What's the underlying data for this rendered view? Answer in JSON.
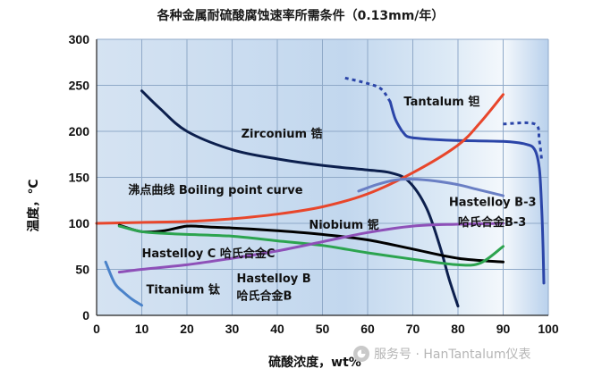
{
  "chart_data": {
    "type": "line",
    "title": "各种金属耐硫酸腐蚀速率所需条件（0.13mm/年）",
    "xlabel": "硫酸浓度，wt%",
    "ylabel": "温度，℃",
    "xlim": [
      0,
      100
    ],
    "ylim": [
      0,
      300
    ],
    "xticks": [
      "0",
      "10",
      "20",
      "30",
      "40",
      "50",
      "60",
      "70",
      "80",
      "90",
      "100"
    ],
    "yticks": [
      "0",
      "50",
      "100",
      "150",
      "200",
      "250",
      "300"
    ],
    "grid": true,
    "background": "vertical gradient, light blue fading to white near 85–100% region",
    "series": [
      {
        "label_lines": [
          "Zirconium 锆"
        ],
        "color": "#0c1f4d",
        "style": "solid",
        "points": [
          [
            10,
            244
          ],
          [
            14,
            225
          ],
          [
            20,
            200
          ],
          [
            30,
            180
          ],
          [
            40,
            170
          ],
          [
            50,
            163
          ],
          [
            60,
            158
          ],
          [
            65,
            155
          ],
          [
            69,
            146
          ],
          [
            73,
            117
          ],
          [
            76,
            75
          ],
          [
            78,
            40
          ],
          [
            80,
            10
          ]
        ]
      },
      {
        "label_lines": [
          "Tantalum 钽"
        ],
        "color": "#2b45a8",
        "style": "solid",
        "points": [
          [
            65,
            232
          ],
          [
            66,
            215
          ],
          [
            67,
            205
          ],
          [
            68,
            198
          ],
          [
            69,
            194
          ],
          [
            72,
            192
          ],
          [
            80,
            190
          ],
          [
            90,
            189
          ],
          [
            95,
            186
          ],
          [
            97,
            180
          ],
          [
            98,
            160
          ],
          [
            98.5,
            120
          ],
          [
            98.8,
            80
          ],
          [
            99,
            35
          ]
        ]
      },
      {
        "label_lines": [],
        "color": "#2b45a8",
        "style": "dotted",
        "points": [
          [
            55,
            258
          ],
          [
            60,
            252
          ],
          [
            63,
            246
          ],
          [
            65,
            232
          ]
        ]
      },
      {
        "label_lines": [],
        "color": "#2b45a8",
        "style": "dotted",
        "points": [
          [
            90,
            208
          ],
          [
            97,
            208
          ],
          [
            98,
            190
          ],
          [
            98.5,
            170
          ]
        ]
      },
      {
        "label_lines": [
          "沸点曲线 Boiling point curve"
        ],
        "color": "#e8462b",
        "style": "solid",
        "points": [
          [
            0,
            100
          ],
          [
            10,
            101
          ],
          [
            20,
            102
          ],
          [
            30,
            105
          ],
          [
            40,
            110
          ],
          [
            50,
            118
          ],
          [
            60,
            132
          ],
          [
            70,
            155
          ],
          [
            80,
            185
          ],
          [
            85,
            210
          ],
          [
            90,
            240
          ]
        ]
      },
      {
        "label_lines": [
          "Hastelloy B-3",
          "哈氏合金B-3"
        ],
        "color": "#6a7fc4",
        "style": "solid",
        "points": [
          [
            58,
            135
          ],
          [
            62,
            142
          ],
          [
            66,
            147
          ],
          [
            70,
            148
          ],
          [
            75,
            146
          ],
          [
            80,
            142
          ],
          [
            85,
            136
          ],
          [
            90,
            130
          ]
        ]
      },
      {
        "label_lines": [
          "Niobium 铌"
        ],
        "color": "#000000",
        "style": "solid",
        "points": [
          [
            5,
            98
          ],
          [
            10,
            91
          ],
          [
            15,
            92
          ],
          [
            20,
            97
          ],
          [
            25,
            96
          ],
          [
            30,
            95
          ],
          [
            40,
            92
          ],
          [
            50,
            88
          ],
          [
            60,
            82
          ],
          [
            70,
            72
          ],
          [
            80,
            62
          ],
          [
            90,
            58
          ]
        ]
      },
      {
        "label_lines": [
          "Hastelloy C 哈氏合金C"
        ],
        "color": "#2ca44f",
        "style": "solid",
        "points": [
          [
            5,
            97
          ],
          [
            10,
            91
          ],
          [
            15,
            89
          ],
          [
            20,
            88
          ],
          [
            30,
            86
          ],
          [
            40,
            81
          ],
          [
            50,
            76
          ],
          [
            60,
            68
          ],
          [
            70,
            61
          ],
          [
            80,
            55
          ],
          [
            85,
            57
          ],
          [
            90,
            75
          ]
        ]
      },
      {
        "label_lines": [
          "Hastelloy B",
          "哈氏合金B"
        ],
        "color": "#8e50b8",
        "style": "solid",
        "points": [
          [
            5,
            47
          ],
          [
            10,
            50
          ],
          [
            20,
            55
          ],
          [
            30,
            62
          ],
          [
            40,
            70
          ],
          [
            50,
            80
          ],
          [
            60,
            90
          ],
          [
            70,
            97
          ],
          [
            80,
            99
          ],
          [
            90,
            100
          ]
        ]
      },
      {
        "label_lines": [
          "Titanium 钛"
        ],
        "color": "#4a82c9",
        "style": "solid",
        "points": [
          [
            2,
            58
          ],
          [
            4,
            35
          ],
          [
            6,
            25
          ],
          [
            8,
            17
          ],
          [
            10,
            11
          ]
        ]
      }
    ],
    "annotations": [
      {
        "text": "Tantalum 钽",
        "x": 68,
        "y": 228
      },
      {
        "text": "Zirconium 锆",
        "x": 32,
        "y": 193
      },
      {
        "text": "沸点曲线 Boiling point curve",
        "x": 7,
        "y": 132
      },
      {
        "text": "Hastelloy B-3",
        "x": 78,
        "y": 119
      },
      {
        "text": "哈氏合金B-3",
        "x": 80,
        "y": 97
      },
      {
        "text": "Niobium 铌",
        "x": 47,
        "y": 94
      },
      {
        "text": "Hastelloy C 哈氏合金C",
        "x": 10,
        "y": 63
      },
      {
        "text": "Hastelloy B",
        "x": 31,
        "y": 36
      },
      {
        "text": "哈氏合金B",
        "x": 31,
        "y": 17
      },
      {
        "text": "Titanium 钛",
        "x": 11,
        "y": 24
      }
    ]
  },
  "watermark": {
    "icon": "wechat-official-account-icon",
    "text": "服务号 · HanTantalum仪表"
  },
  "colors": {
    "plot_bg_top": "#c8dbef",
    "plot_bg_fade": "#ffffff",
    "grid": "#8fa9c8"
  }
}
